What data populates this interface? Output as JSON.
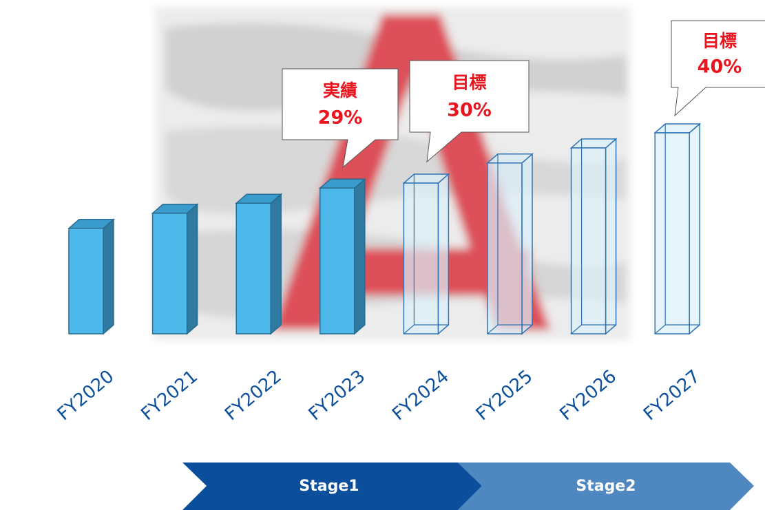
{
  "chart_data": {
    "type": "bar3d",
    "categories": [
      "FY2020",
      "FY2021",
      "FY2022",
      "FY2023",
      "FY2024",
      "FY2025",
      "FY2026",
      "FY2027"
    ],
    "values": [
      21,
      24,
      26,
      29,
      30,
      34,
      37,
      40
    ],
    "value_labels": [
      null,
      null,
      null,
      "29%",
      "30%",
      null,
      null,
      "40%"
    ],
    "value_notes": [
      null,
      null,
      null,
      "実績",
      "目標",
      null,
      null,
      "目標"
    ],
    "colors": [
      "#4db8ea",
      "#4db8ea",
      "#4db8ea",
      "#4db8ea",
      "#dcf0fa",
      "#dcf0fa",
      "#dcf0fa",
      "#dcf0fa"
    ],
    "stages": [
      "Stage1",
      "Stage2"
    ]
  }
}
